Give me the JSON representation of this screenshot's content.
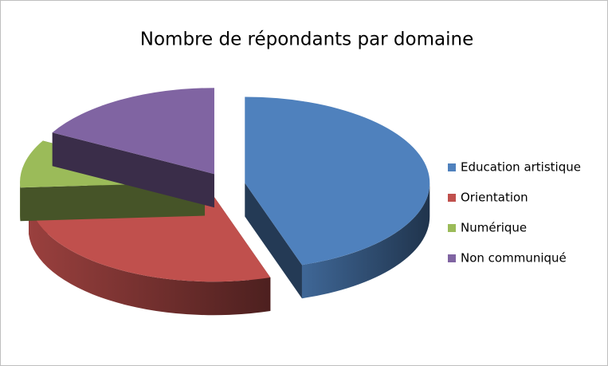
{
  "chart_data": {
    "type": "pie",
    "title": "Nombre de répondants par domaine",
    "categories": [
      "Education artistique",
      "Orientation",
      "Numérique",
      "Non communiqué"
    ],
    "values": [
      45,
      29,
      9,
      17
    ],
    "colors": [
      "#4f81bd",
      "#c0504d",
      "#9bbb59",
      "#8064a2"
    ],
    "legend": "right"
  }
}
